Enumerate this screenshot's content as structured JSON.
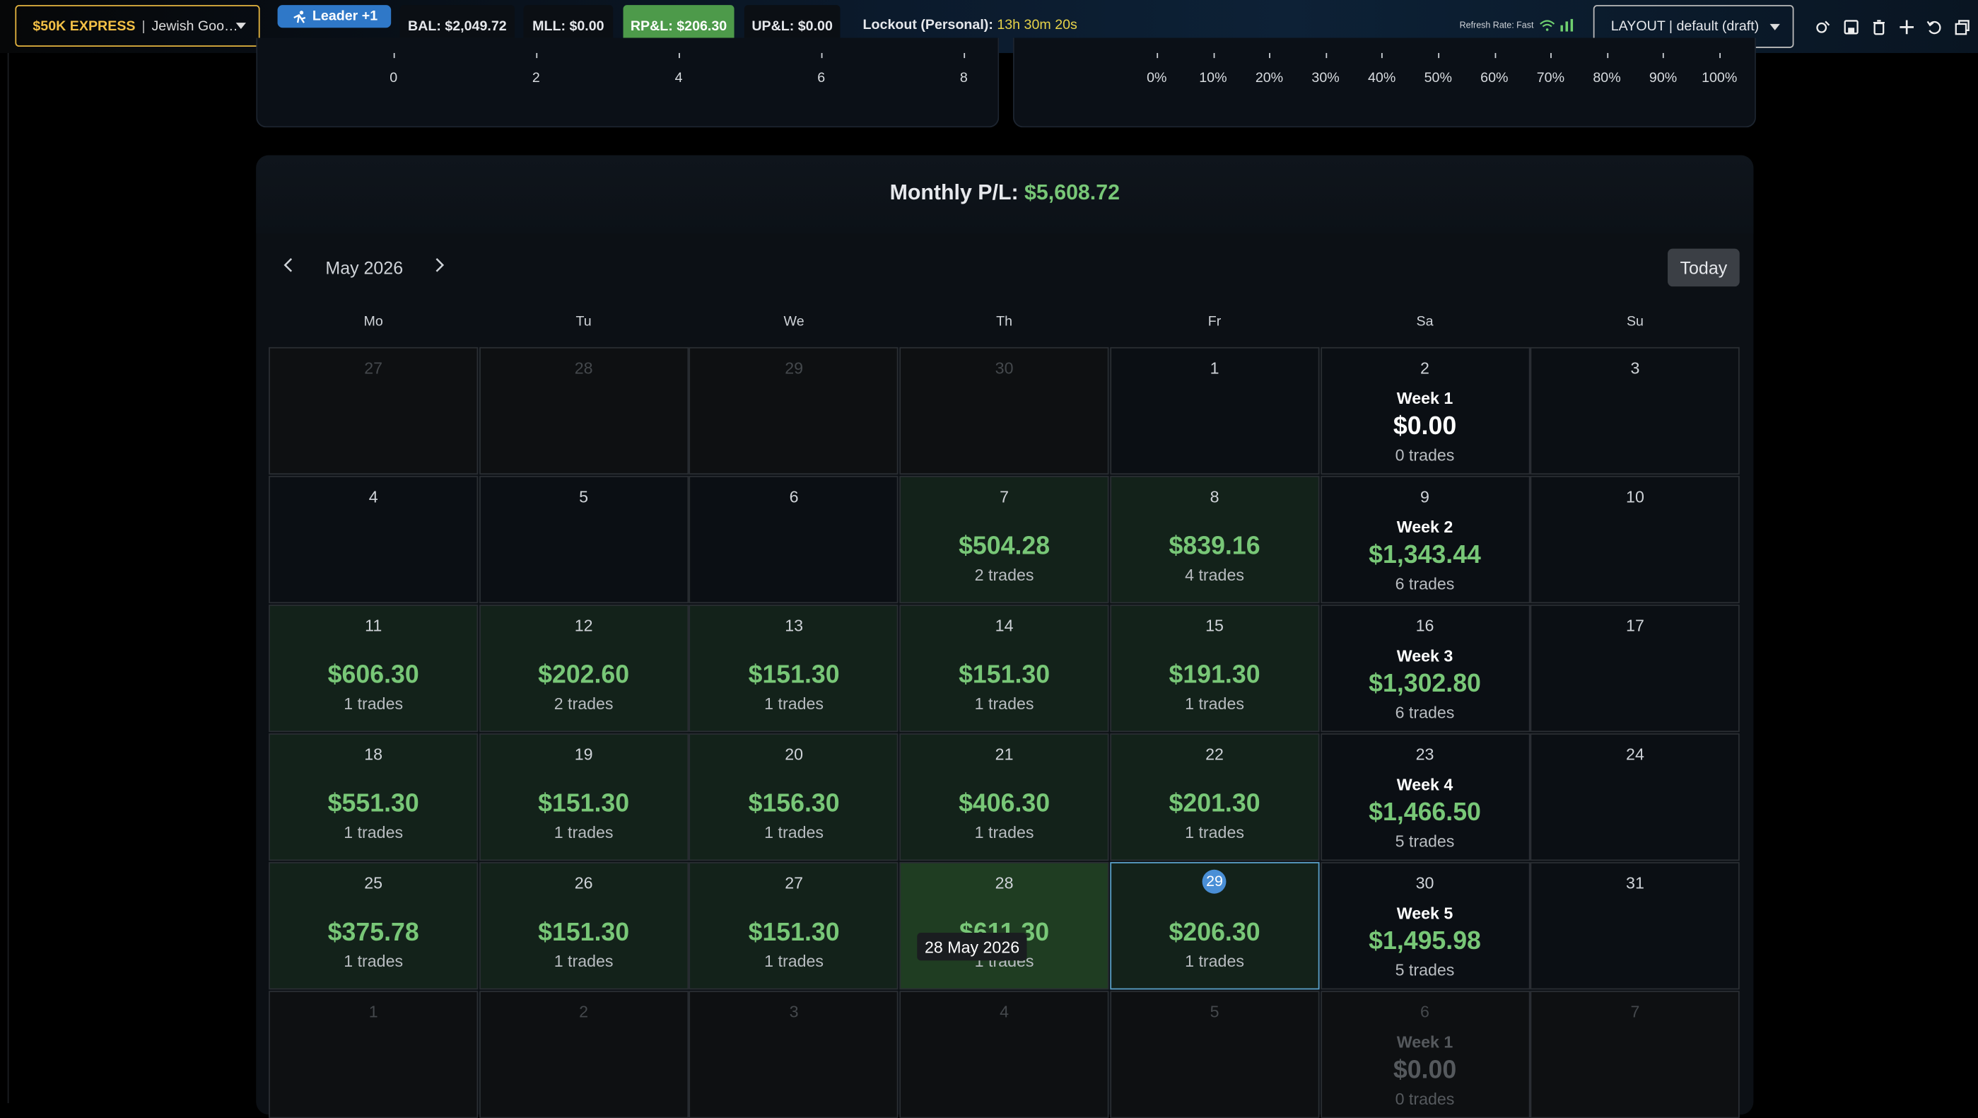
{
  "topbar": {
    "account": {
      "name": "$50K EXPRESS",
      "separator": "|",
      "sub": "Jewish Goo…"
    },
    "leader": "Leader +1",
    "chips": {
      "bal": "BAL: $2,049.72",
      "mll": "MLL: $0.00",
      "rpl": "RP&L: $206.30",
      "upl": "UP&L: $0.00"
    },
    "lockout_label": "Lockout (Personal):",
    "lockout_value": "13h 30m 20s",
    "refresh": "Refresh Rate: Fast",
    "layout": "LAYOUT | default (draft)",
    "icons": [
      "theme-icon",
      "save-icon",
      "delete-icon",
      "add-icon",
      "undo-icon",
      "window-icon"
    ]
  },
  "charts": {
    "left_ticks": [
      "0",
      "2",
      "4",
      "6",
      "8"
    ],
    "right_ticks": [
      "0%",
      "10%",
      "20%",
      "30%",
      "40%",
      "50%",
      "60%",
      "70%",
      "80%",
      "90%",
      "100%"
    ]
  },
  "calendar": {
    "monthly_label": "Monthly P/L:",
    "monthly_value": "$5,608.72",
    "month": "May 2026",
    "today": "Today",
    "weekdays": [
      "Mo",
      "Tu",
      "We",
      "Th",
      "Fr",
      "Sa",
      "Su"
    ],
    "tooltip": "28 May 2026",
    "rows": [
      [
        {
          "d": "27",
          "muted": true
        },
        {
          "d": "28",
          "muted": true
        },
        {
          "d": "29",
          "muted": true
        },
        {
          "d": "30",
          "muted": true
        },
        {
          "d": "1"
        },
        {
          "d": "2",
          "week": "Week 1",
          "wamt": "$0.00",
          "wtr": "0 trades",
          "white": true
        },
        {
          "d": "3"
        }
      ],
      [
        {
          "d": "4"
        },
        {
          "d": "5"
        },
        {
          "d": "6"
        },
        {
          "d": "7",
          "amt": "$504.28",
          "tr": "2 trades"
        },
        {
          "d": "8",
          "amt": "$839.16",
          "tr": "4 trades"
        },
        {
          "d": "9",
          "week": "Week 2",
          "wamt": "$1,343.44",
          "wtr": "6 trades"
        },
        {
          "d": "10"
        }
      ],
      [
        {
          "d": "11",
          "amt": "$606.30",
          "tr": "1 trades"
        },
        {
          "d": "12",
          "amt": "$202.60",
          "tr": "2 trades"
        },
        {
          "d": "13",
          "amt": "$151.30",
          "tr": "1 trades"
        },
        {
          "d": "14",
          "amt": "$151.30",
          "tr": "1 trades"
        },
        {
          "d": "15",
          "amt": "$191.30",
          "tr": "1 trades"
        },
        {
          "d": "16",
          "week": "Week 3",
          "wamt": "$1,302.80",
          "wtr": "6 trades"
        },
        {
          "d": "17"
        }
      ],
      [
        {
          "d": "18",
          "amt": "$551.30",
          "tr": "1 trades"
        },
        {
          "d": "19",
          "amt": "$151.30",
          "tr": "1 trades"
        },
        {
          "d": "20",
          "amt": "$156.30",
          "tr": "1 trades"
        },
        {
          "d": "21",
          "amt": "$406.30",
          "tr": "1 trades"
        },
        {
          "d": "22",
          "amt": "$201.30",
          "tr": "1 trades"
        },
        {
          "d": "23",
          "week": "Week 4",
          "wamt": "$1,466.50",
          "wtr": "5 trades"
        },
        {
          "d": "24"
        }
      ],
      [
        {
          "d": "25",
          "amt": "$375.78",
          "tr": "1 trades"
        },
        {
          "d": "26",
          "amt": "$151.30",
          "tr": "1 trades"
        },
        {
          "d": "27",
          "amt": "$151.30",
          "tr": "1 trades"
        },
        {
          "d": "28",
          "amt": "$611.30",
          "tr": "1 trades",
          "hot": true
        },
        {
          "d": "29",
          "amt": "$206.30",
          "tr": "1 trades",
          "selected": true
        },
        {
          "d": "30",
          "week": "Week 5",
          "wamt": "$1,495.98",
          "wtr": "5 trades"
        },
        {
          "d": "31"
        }
      ],
      [
        {
          "d": "1",
          "muted": true
        },
        {
          "d": "2",
          "muted": true
        },
        {
          "d": "3",
          "muted": true
        },
        {
          "d": "4",
          "muted": true
        },
        {
          "d": "5",
          "muted": true
        },
        {
          "d": "6",
          "muted": true,
          "week": "Week 1",
          "wamt": "$0.00",
          "wtr": "0 trades"
        },
        {
          "d": "7",
          "muted": true
        }
      ]
    ]
  }
}
